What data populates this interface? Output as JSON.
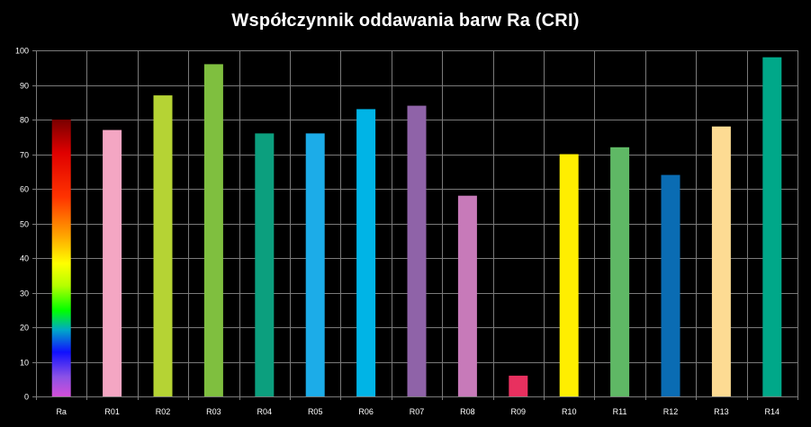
{
  "chart_data": {
    "type": "bar",
    "title": "Współczynnik oddawania barw Ra (CRI)",
    "xlabel": "",
    "ylabel": "",
    "ylim": [
      0,
      100
    ],
    "yticks": [
      0,
      10,
      20,
      30,
      40,
      50,
      60,
      70,
      80,
      90,
      100
    ],
    "grid": true,
    "legend": "none",
    "categories": [
      "Ra",
      "R01",
      "R02",
      "R03",
      "R04",
      "R05",
      "R06",
      "R07",
      "R08",
      "R09",
      "R10",
      "R11",
      "R12",
      "R13",
      "R14"
    ],
    "values": [
      80,
      77,
      87,
      96,
      76,
      76,
      83,
      84,
      58,
      6,
      70,
      72,
      64,
      78,
      98
    ],
    "colors": [
      "gradient",
      "#f4a6c3",
      "#b5d334",
      "#7fbf3f",
      "#0c9f7e",
      "#1cace8",
      "#00b4e6",
      "#8f63a8",
      "#c77ab9",
      "#e8305f",
      "#ffee00",
      "#5fb865",
      "#0a6cb3",
      "#fddb93",
      "#00a889"
    ]
  }
}
